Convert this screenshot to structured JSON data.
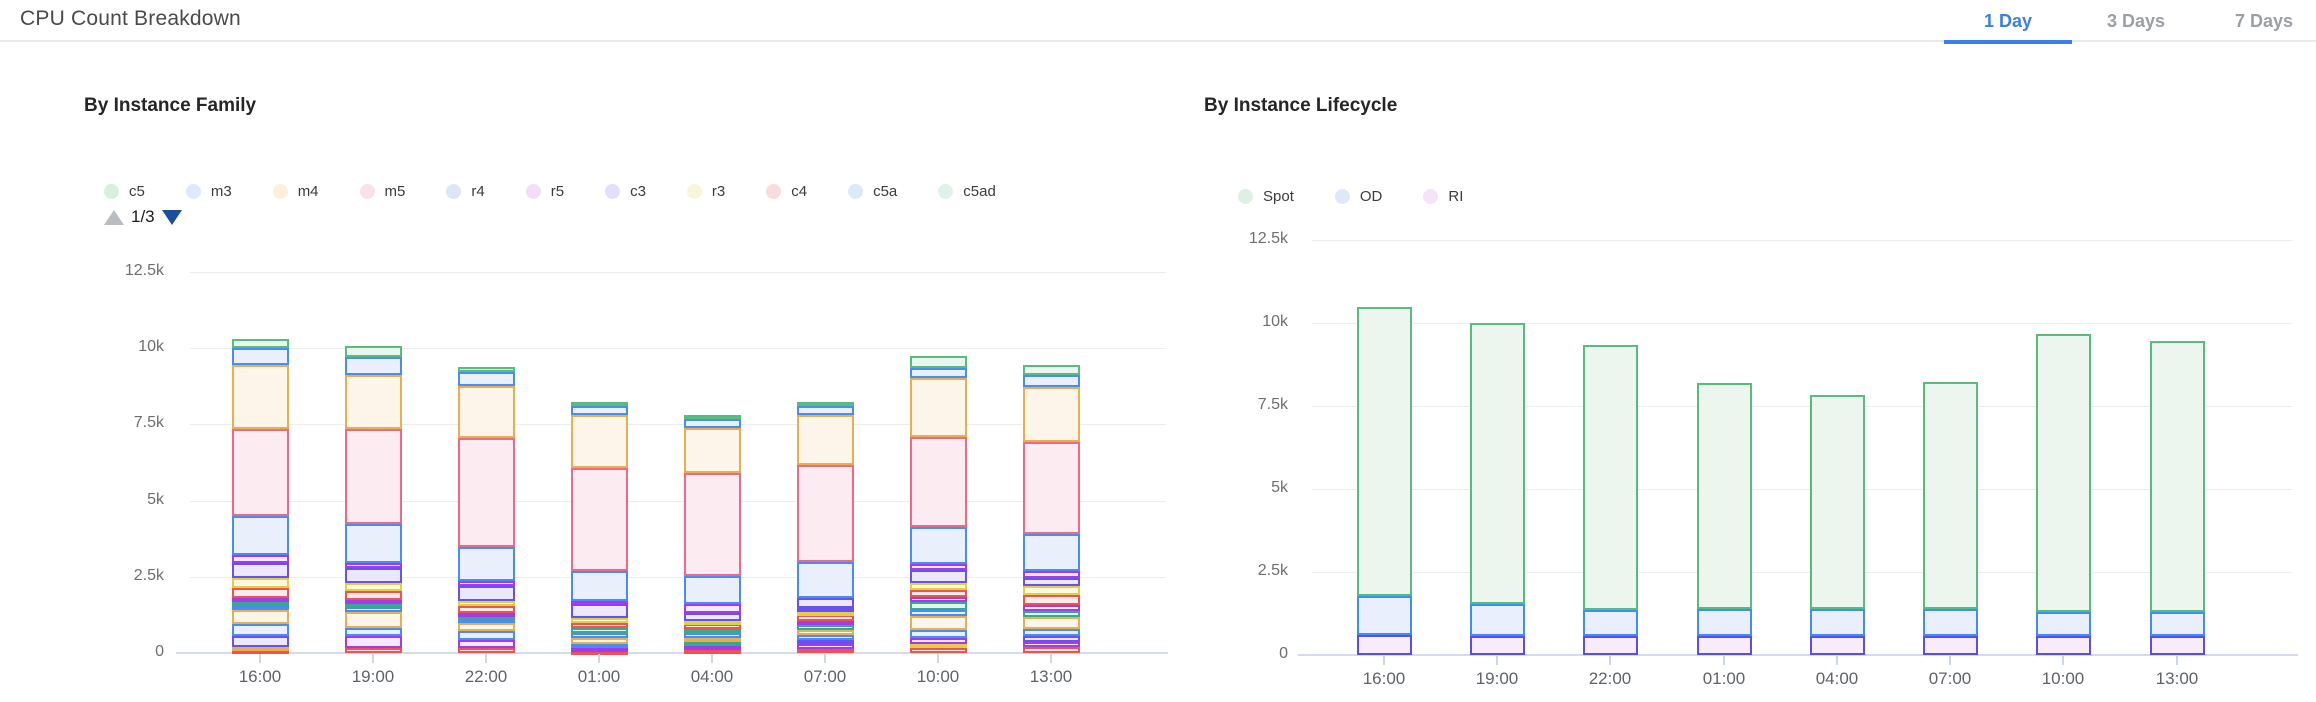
{
  "header": {
    "title": "CPU Count Breakdown",
    "tabs": [
      {
        "label": "1 Day",
        "active": true
      },
      {
        "label": "3 Days",
        "active": false
      },
      {
        "label": "7 Days",
        "active": false
      }
    ]
  },
  "colors": {
    "tab_active": "#3b7ef0",
    "tab_inactive": "#9aa0a6",
    "axis_line": "#d5daee",
    "gridline": "#ededed",
    "ytick_text": "#6e6e6e",
    "xtick_text": "#5f6368",
    "pagination_up_arrow": "#b9bdc1",
    "pagination_down_arrow": "#1d4e9e",
    "segment_palette": {
      "green": {
        "border": "#57bd7e",
        "fill": "#eaf5ee"
      },
      "blue": {
        "border": "#4a8cf5",
        "fill": "#e9f0fc"
      },
      "orange": {
        "border": "#e7ae52",
        "fill": "#fdf5e9"
      },
      "pink": {
        "border": "#ec6a85",
        "fill": "#fcecf1"
      },
      "purple": {
        "border": "#a23bec",
        "fill": "#f3e8fd"
      },
      "violet": {
        "border": "#6a50ee",
        "fill": "#ebe8fc"
      },
      "yellow": {
        "border": "#e3cf43",
        "fill": "#fcf9e0"
      },
      "red": {
        "border": "#f05252",
        "fill": "#fdeaea"
      },
      "teal": {
        "border": "#38a98c",
        "fill": "#e5f4ef"
      },
      "spot": {
        "border": "#57bd7e",
        "fill": "#ecf6ef"
      },
      "od": {
        "border": "#3f8ef3",
        "fill": "#e9effc"
      },
      "ri": {
        "border": "#5b4ee8",
        "fill": "#f8ebfa"
      }
    }
  },
  "chart_data": [
    {
      "type": "bar",
      "stacked": true,
      "id": "family",
      "title": "By Instance Family",
      "legend_position": "top",
      "grid": true,
      "legend": [
        {
          "label": "c5",
          "dot": "#d9eee0"
        },
        {
          "label": "m3",
          "dot": "#dfe9fc"
        },
        {
          "label": "m4",
          "dot": "#fdf0da"
        },
        {
          "label": "m5",
          "dot": "#fbdfe9"
        },
        {
          "label": "r4",
          "dot": "#dde6f7"
        },
        {
          "label": "r5",
          "dot": "#f2def8"
        },
        {
          "label": "c3",
          "dot": "#e4defb"
        },
        {
          "label": "r3",
          "dot": "#faf5d7"
        },
        {
          "label": "c4",
          "dot": "#fadcdc"
        },
        {
          "label": "c5a",
          "dot": "#d9ebf7"
        },
        {
          "label": "c5ad",
          "dot": "#def2e8"
        }
      ],
      "legend_pagination": {
        "text": "1/3",
        "up_enabled": false,
        "down_enabled": true
      },
      "ylim": [
        0,
        12500
      ],
      "yticks": [
        {
          "label": "12.5k",
          "value": 12500
        },
        {
          "label": "10k",
          "value": 10000
        },
        {
          "label": "7.5k",
          "value": 7500
        },
        {
          "label": "5k",
          "value": 5000
        },
        {
          "label": "2.5k",
          "value": 2500
        },
        {
          "label": "0",
          "value": 0
        }
      ],
      "categories": [
        "16:00",
        "19:00",
        "22:00",
        "01:00",
        "04:00",
        "07:00",
        "10:00",
        "13:00"
      ],
      "bar_totals": [
        10295,
        10060,
        9380,
        8235,
        7815,
        8250,
        9735,
        9455
      ],
      "bars": [
        {
          "category": "16:00",
          "segments": [
            [
              "red",
              90
            ],
            [
              "orange",
              100
            ],
            [
              "violet",
              360
            ],
            [
              "blue",
              390
            ],
            [
              "orange",
              460
            ],
            [
              "blue",
              140
            ],
            [
              "teal",
              130
            ],
            [
              "purple",
              145
            ],
            [
              "red",
              330
            ],
            [
              "yellow",
              330
            ],
            [
              "violet",
              480
            ],
            [
              "purple",
              270
            ],
            [
              "blue",
              1260
            ],
            [
              "pink",
              2860
            ],
            [
              "orange",
              2090
            ],
            [
              "blue",
              560
            ],
            [
              "green",
              300
            ]
          ]
        },
        {
          "category": "19:00",
          "segments": [
            [
              "red",
              170
            ],
            [
              "purple",
              380
            ],
            [
              "blue",
              275
            ],
            [
              "orange",
              515
            ],
            [
              "blue",
              165
            ],
            [
              "teal",
              110
            ],
            [
              "purple",
              140
            ],
            [
              "red",
              275
            ],
            [
              "yellow",
              275
            ],
            [
              "violet",
              495
            ],
            [
              "purple",
              165
            ],
            [
              "blue",
              1265
            ],
            [
              "pink",
              3135
            ],
            [
              "orange",
              1760
            ],
            [
              "blue",
              575
            ],
            [
              "green",
              360
            ]
          ]
        },
        {
          "category": "22:00",
          "segments": [
            [
              "red",
              170
            ],
            [
              "purple",
              250
            ],
            [
              "blue",
              300
            ],
            [
              "orange",
              275
            ],
            [
              "blue",
              110
            ],
            [
              "teal",
              110
            ],
            [
              "purple",
              110
            ],
            [
              "red",
              220
            ],
            [
              "yellow",
              165
            ],
            [
              "violet",
              495
            ],
            [
              "purple",
              165
            ],
            [
              "blue",
              1100
            ],
            [
              "pink",
              3575
            ],
            [
              "orange",
              1705
            ],
            [
              "blue",
              475
            ],
            [
              "green",
              155
            ]
          ]
        },
        {
          "category": "01:00",
          "segments": [
            [
              "red",
              60
            ],
            [
              "purple",
              110
            ],
            [
              "blue",
              110
            ],
            [
              "orange",
              220
            ],
            [
              "blue",
              165
            ],
            [
              "teal",
              165
            ],
            [
              "red",
              145
            ],
            [
              "yellow",
              185
            ],
            [
              "violet",
              440
            ],
            [
              "purple",
              110
            ],
            [
              "blue",
              990
            ],
            [
              "pink",
              3355
            ],
            [
              "orange",
              1760
            ],
            [
              "blue",
              275
            ],
            [
              "green",
              145
            ]
          ]
        },
        {
          "category": "04:00",
          "segments": [
            [
              "red",
              90
            ],
            [
              "purple",
              135
            ],
            [
              "teal",
              130
            ],
            [
              "orange",
              145
            ],
            [
              "blue",
              145
            ],
            [
              "teal",
              155
            ],
            [
              "red",
              140
            ],
            [
              "yellow",
              110
            ],
            [
              "violet",
              275
            ],
            [
              "purple",
              275
            ],
            [
              "blue",
              935
            ],
            [
              "pink",
              3355
            ],
            [
              "orange",
              1485
            ],
            [
              "blue",
              310
            ],
            [
              "green",
              130
            ]
          ]
        },
        {
          "category": "07:00",
          "segments": [
            [
              "red",
              140
            ],
            [
              "purple",
              140
            ],
            [
              "violet",
              140
            ],
            [
              "blue",
              155
            ],
            [
              "orange",
              195
            ],
            [
              "teal",
              135
            ],
            [
              "purple",
              140
            ],
            [
              "red",
              190
            ],
            [
              "yellow",
              105
            ],
            [
              "violet",
              145
            ],
            [
              "violet",
              330
            ],
            [
              "blue",
              1155
            ],
            [
              "pink",
              3190
            ],
            [
              "orange",
              1650
            ],
            [
              "blue",
              310
            ],
            [
              "green",
              130
            ]
          ]
        },
        {
          "category": "10:00",
          "segments": [
            [
              "red",
              165
            ],
            [
              "yellow",
              140
            ],
            [
              "purple",
              185
            ],
            [
              "blue",
              275
            ],
            [
              "orange",
              465
            ],
            [
              "blue",
              175
            ],
            [
              "teal",
              265
            ],
            [
              "purple",
              175
            ],
            [
              "red",
              220
            ],
            [
              "yellow",
              245
            ],
            [
              "violet",
              415
            ],
            [
              "purple",
              190
            ],
            [
              "blue",
              1210
            ],
            [
              "pink",
              2970
            ],
            [
              "orange",
              1925
            ],
            [
              "blue",
              330
            ],
            [
              "green",
              385
            ]
          ]
        },
        {
          "category": "13:00",
          "segments": [
            [
              "red",
              195
            ],
            [
              "purple",
              150
            ],
            [
              "violet",
              200
            ],
            [
              "blue",
              245
            ],
            [
              "orange",
              395
            ],
            [
              "teal",
              185
            ],
            [
              "purple",
              220
            ],
            [
              "red",
              300
            ],
            [
              "yellow",
              305
            ],
            [
              "violet",
              275
            ],
            [
              "purple",
              220
            ],
            [
              "blue",
              1210
            ],
            [
              "pink",
              3025
            ],
            [
              "orange",
              1815
            ],
            [
              "blue",
              365
            ],
            [
              "green",
              350
            ]
          ]
        }
      ]
    },
    {
      "type": "bar",
      "stacked": true,
      "id": "lifecycle",
      "title": "By Instance Lifecycle",
      "legend_position": "top",
      "grid": true,
      "legend": [
        {
          "label": "Spot",
          "dot": "#def0e4"
        },
        {
          "label": "OD",
          "dot": "#dfe7fb"
        },
        {
          "label": "RI",
          "dot": "#f5e3f9"
        }
      ],
      "ylim": [
        0,
        12500
      ],
      "yticks": [
        {
          "label": "12.5k",
          "value": 12500
        },
        {
          "label": "10k",
          "value": 10000
        },
        {
          "label": "7.5k",
          "value": 7500
        },
        {
          "label": "5k",
          "value": 5000
        },
        {
          "label": "2.5k",
          "value": 2500
        },
        {
          "label": "0",
          "value": 0
        }
      ],
      "categories": [
        "16:00",
        "19:00",
        "22:00",
        "01:00",
        "04:00",
        "07:00",
        "10:00",
        "13:00"
      ],
      "series": [
        {
          "name": "RI",
          "color": "ri",
          "values": [
            600,
            570,
            570,
            570,
            570,
            570,
            570,
            570
          ]
        },
        {
          "name": "OD",
          "color": "od",
          "values": [
            1170,
            960,
            785,
            805,
            805,
            805,
            730,
            735
          ]
        },
        {
          "name": "Spot",
          "color": "spot",
          "values": [
            8700,
            8470,
            7975,
            6820,
            6450,
            6855,
            8370,
            8155
          ]
        }
      ],
      "bar_totals": [
        10470,
        10000,
        9330,
        8195,
        7825,
        8230,
        9670,
        9460
      ]
    }
  ]
}
